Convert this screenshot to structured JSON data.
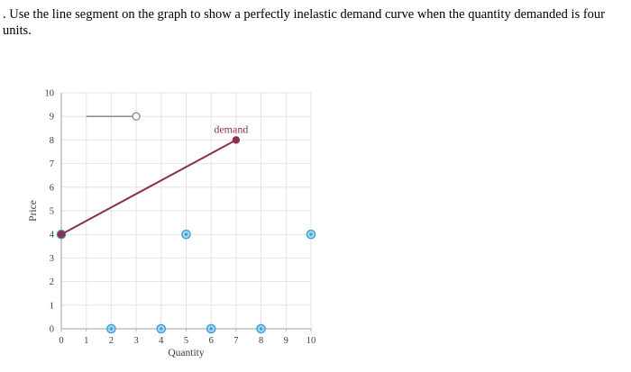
{
  "page": {
    "question": ". Use the line segment on the graph to show a perfectly inelastic demand curve when the quantity demanded is four units."
  },
  "chart_data": {
    "type": "line",
    "title": "",
    "xlabel": "Quantity",
    "ylabel": "Price",
    "xlim": [
      0,
      10
    ],
    "ylim": [
      0,
      10
    ],
    "xticks": [
      0,
      1,
      2,
      3,
      4,
      5,
      6,
      7,
      8,
      9,
      10
    ],
    "yticks": [
      0,
      1,
      2,
      3,
      4,
      5,
      6,
      7,
      8,
      9,
      10
    ],
    "grid": "on",
    "series": [
      {
        "name": "demand",
        "label": "demand",
        "points": [
          {
            "x": 0,
            "y": 4
          },
          {
            "x": 7,
            "y": 8
          }
        ],
        "color": "#8b3050",
        "marker": "filled-circle",
        "label_at": {
          "x": 6.8,
          "y": 8.3
        }
      },
      {
        "name": "tool-segment",
        "label": "",
        "points": [
          {
            "x": 1,
            "y": 9
          },
          {
            "x": 3,
            "y": 9
          }
        ],
        "color": "#8a8a8a",
        "marker": "open-circle-right"
      }
    ],
    "handles": [
      {
        "x": 0,
        "y": 4
      },
      {
        "x": 5,
        "y": 4
      },
      {
        "x": 10,
        "y": 4
      },
      {
        "x": 2,
        "y": 0
      },
      {
        "x": 4,
        "y": 0
      },
      {
        "x": 6,
        "y": 0
      },
      {
        "x": 8,
        "y": 0
      }
    ],
    "colors": {
      "demand": "#8b3050",
      "handle_fill": "#a6d9f2",
      "handle_stroke": "#3d9fd6",
      "grid": "#e4e4e4",
      "axis": "#b5b5b5",
      "segment": "#8a8a8a",
      "tick_text": "#3b3b3b"
    }
  }
}
